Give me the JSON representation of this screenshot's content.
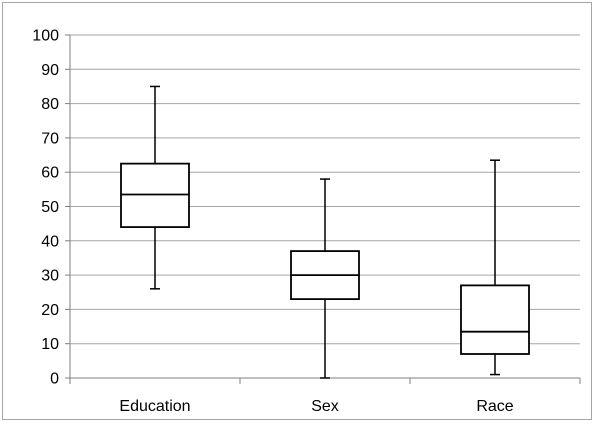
{
  "chart_data": {
    "type": "box",
    "categories": [
      "Education",
      "Sex",
      "Race"
    ],
    "boxes": [
      {
        "category": "Education",
        "min": 26,
        "q1": 44,
        "median": 53.5,
        "q3": 62.5,
        "max": 85
      },
      {
        "category": "Sex",
        "min": 0,
        "q1": 23,
        "median": 30,
        "q3": 37,
        "max": 58
      },
      {
        "category": "Race",
        "min": 1,
        "q1": 7,
        "median": 13.5,
        "q3": 27,
        "max": 63.5
      }
    ],
    "ylim": [
      0,
      100
    ],
    "yticks": [
      0,
      10,
      20,
      30,
      40,
      50,
      60,
      70,
      80,
      90,
      100
    ],
    "grid": true,
    "title": "",
    "xlabel": "",
    "ylabel": "",
    "colors": {
      "grid": "#a6a6a6",
      "axis": "#7f7f7f",
      "box_fill": "#ffffff",
      "box_stroke": "#000000"
    }
  }
}
